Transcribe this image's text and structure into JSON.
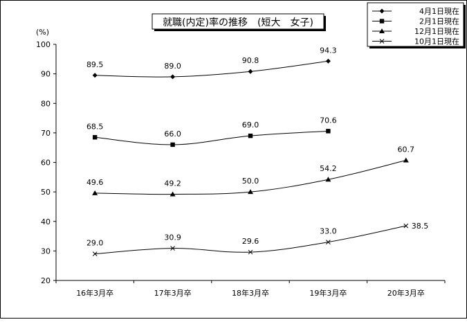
{
  "chart_data": {
    "type": "line",
    "title": "就職(内定)率の推移　(短大　女子)",
    "ylabel": "(%)",
    "xlabel": "",
    "ylim": [
      20,
      100
    ],
    "yticks": [
      "20",
      "30",
      "40",
      "50",
      "60",
      "70",
      "80",
      "90",
      "100"
    ],
    "categories": [
      "16年3月卒",
      "17年3月卒",
      "18年3月卒",
      "19年3月卒",
      "20年3月卒"
    ],
    "grid": false,
    "legend_position": "top-right",
    "series": [
      {
        "name": "4月1日現在",
        "marker": "diamond",
        "values": [
          89.5,
          89.0,
          90.8,
          94.3,
          null
        ],
        "labels": [
          "89.5",
          "89.0",
          "90.8",
          "94.3",
          null
        ]
      },
      {
        "name": "2月1日現在",
        "marker": "square",
        "values": [
          68.5,
          66.0,
          69.0,
          70.6,
          null
        ],
        "labels": [
          "68.5",
          "66.0",
          "69.0",
          "70.6",
          null
        ]
      },
      {
        "name": "12月1日現在",
        "marker": "triangle",
        "values": [
          49.6,
          49.2,
          50.0,
          54.2,
          60.7
        ],
        "labels": [
          "49.6",
          "49.2",
          "50.0",
          "54.2",
          "60.7"
        ]
      },
      {
        "name": "10月1日現在",
        "marker": "x",
        "values": [
          29.0,
          30.9,
          29.6,
          33.0,
          38.5
        ],
        "labels": [
          "29.0",
          "30.9",
          "29.6",
          "33.0",
          "38.5"
        ]
      }
    ]
  }
}
